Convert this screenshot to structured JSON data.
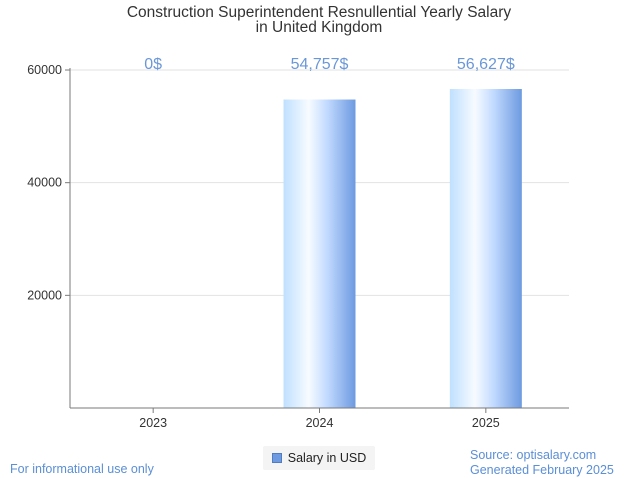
{
  "chart_data": {
    "type": "bar",
    "title": "Construction Superintendent Resnullential Yearly Salary",
    "subtitle": "in United Kingdom",
    "categories": [
      "2023",
      "2024",
      "2025"
    ],
    "series": [
      {
        "name": "Salary in USD",
        "values": [
          0,
          54757,
          56627
        ]
      }
    ],
    "data_labels": [
      "0$",
      "54,757$",
      "56,627$"
    ],
    "y_ticks": [
      "60000",
      "40000",
      "20000"
    ],
    "y_tick_values": [
      60000,
      40000,
      20000
    ],
    "ylim": [
      0,
      60000
    ],
    "xlabel": "",
    "ylabel": "",
    "grid": true,
    "legend_position": "bottom-center"
  },
  "footer": {
    "note": "For informational use only",
    "source": "Source: optisalary.com",
    "generated": "Generated February 2025"
  },
  "colors": {
    "bar_light": "#e9f3ff",
    "bar_mid": "#bfdcff",
    "bar_dark": "#6d9ae0",
    "label": "#6a97d8",
    "grid": "#e2e2e2",
    "axis": "#7a7a7a"
  }
}
